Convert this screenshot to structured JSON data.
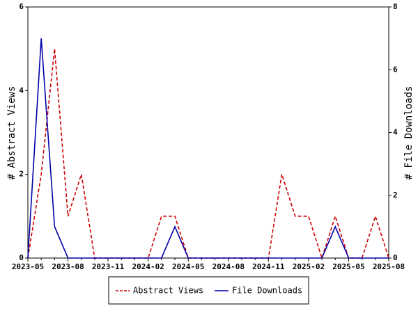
{
  "chart_data": {
    "type": "line",
    "categories": [
      "2023-05",
      null,
      null,
      "2023-08",
      null,
      null,
      "2023-11",
      null,
      null,
      "2024-02",
      null,
      null,
      "2024-05",
      null,
      null,
      "2024-08",
      null,
      null,
      "2024-11",
      null,
      null,
      "2025-02",
      null,
      null,
      "2025-05",
      null,
      null,
      "2025-08"
    ],
    "y_label": "# Abstract Views",
    "y2_label": "# File Downloads",
    "ylim": [
      0,
      6
    ],
    "yticks": [
      0,
      2,
      4,
      6
    ],
    "y2lim": [
      0,
      8
    ],
    "y2ticks": [
      0,
      2,
      4,
      6,
      8
    ],
    "legend": "bottom",
    "series": [
      {
        "name": "Abstract Views",
        "color": "#cc0000",
        "dashed": true,
        "values": [
          0,
          2,
          5,
          1,
          2,
          0,
          0,
          0,
          0,
          0,
          1,
          1,
          0,
          0,
          0,
          0,
          0,
          0,
          0,
          2,
          1,
          1,
          0,
          1,
          0,
          0,
          1,
          0
        ]
      },
      {
        "name": "File Downloads",
        "color": "#0000aa",
        "dashed": false,
        "axis": "y2",
        "values": [
          0,
          7,
          1,
          0,
          0,
          0,
          0,
          0,
          0,
          0,
          0,
          1,
          0,
          0,
          0,
          0,
          0,
          0,
          0,
          0,
          0,
          0,
          0,
          1,
          0,
          0,
          0,
          0
        ]
      }
    ]
  }
}
